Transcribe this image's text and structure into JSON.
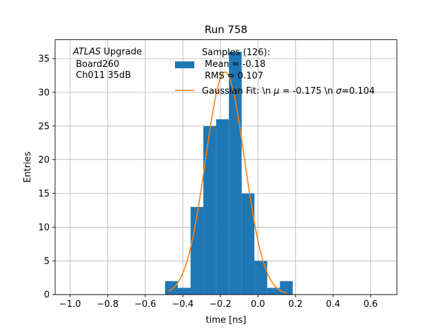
{
  "chart_data": {
    "type": "bar",
    "title": "Run 758",
    "xlabel": "time [ns]",
    "ylabel": "Entries",
    "xlim": [
      -1.08,
      0.74
    ],
    "ylim": [
      0,
      37.8
    ],
    "xticks": [
      -1.0,
      -0.8,
      -0.6,
      -0.4,
      -0.2,
      0.0,
      0.2,
      0.4,
      0.6
    ],
    "xtick_labels": [
      "−1.0",
      "−0.8",
      "−0.6",
      "−0.4",
      "−0.2",
      "0.0",
      "0.2",
      "0.4",
      "0.6"
    ],
    "yticks": [
      0,
      5,
      10,
      15,
      20,
      25,
      30,
      35
    ],
    "ytick_labels": [
      "0",
      "5",
      "10",
      "15",
      "20",
      "25",
      "30",
      "35"
    ],
    "grid": true,
    "annotation": {
      "line1_italic": "ATLAS",
      "line1_rest": " Upgrade",
      "line2": " Board260",
      "line3": " Ch011 35dB"
    },
    "histogram": {
      "name_lines": [
        "Samples (126):",
        " Mean = -0.18",
        " RMS = 0.107"
      ],
      "color": "#1f77b4",
      "bin_edges": [
        -0.4947,
        -0.4267,
        -0.3587,
        -0.2907,
        -0.2227,
        -0.1547,
        -0.0867,
        -0.0187,
        0.0493,
        0.1173,
        0.1853
      ],
      "counts": [
        2,
        1,
        13,
        25,
        26,
        36,
        15,
        5,
        1,
        2
      ]
    },
    "fit": {
      "name_parts": [
        "Gaussian Fit: \\n ",
        "μ",
        " = -0.175 \\n ",
        "σ",
        "=0.104"
      ],
      "color": "#ff7f0e",
      "amplitude": 33,
      "mu": -0.175,
      "sigma": 0.104,
      "x_range": [
        -0.475,
        0.155
      ]
    },
    "legend_position": "top-center"
  }
}
